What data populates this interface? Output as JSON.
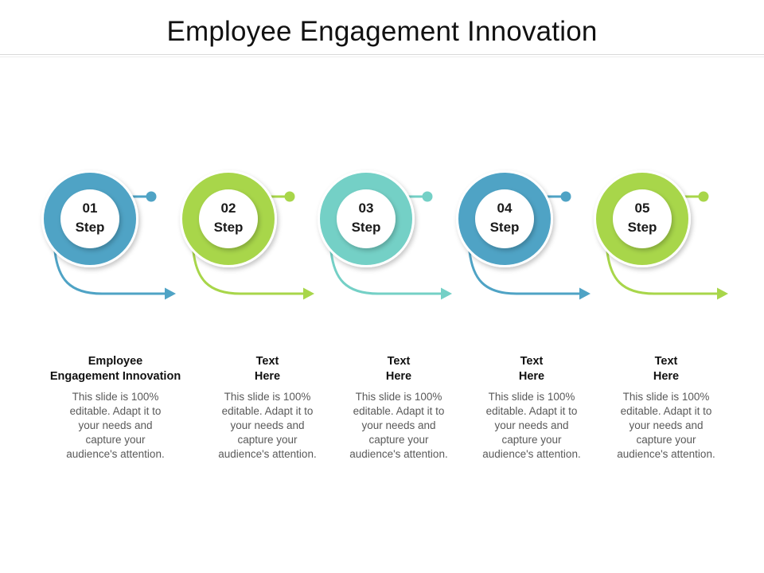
{
  "title": "Employee Engagement Innovation",
  "colors": {
    "blue": "#4fa3c5",
    "green": "#a8d64a",
    "teal": "#74d0c6"
  },
  "steps": [
    {
      "number": "01",
      "word": "Step",
      "color": "#4fa3c5",
      "heading": [
        "Employee",
        "Engagement Innovation"
      ],
      "desc": [
        "This slide is 100%",
        "editable. Adapt it to",
        "your needs and",
        "capture your",
        "audience's attention."
      ]
    },
    {
      "number": "02",
      "word": "Step",
      "color": "#a8d64a",
      "heading": [
        "Text",
        "Here"
      ],
      "desc": [
        "This slide is 100%",
        "editable. Adapt it to",
        "your needs and",
        "capture your",
        "audience's attention."
      ]
    },
    {
      "number": "03",
      "word": "Step",
      "color": "#74d0c6",
      "heading": [
        "Text",
        "Here"
      ],
      "desc": [
        "This slide is 100%",
        "editable. Adapt it to",
        "your needs and",
        "capture your",
        "audience's attention."
      ]
    },
    {
      "number": "04",
      "word": "Step",
      "color": "#4fa3c5",
      "heading": [
        "Text",
        "Here"
      ],
      "desc": [
        "This slide is 100%",
        "editable. Adapt it to",
        "your needs and",
        "capture your",
        "audience's attention."
      ]
    },
    {
      "number": "05",
      "word": "Step",
      "color": "#a8d64a",
      "heading": [
        "Text",
        "Here"
      ],
      "desc": [
        "This slide is 100%",
        "editable. Adapt it to",
        "your needs and",
        "capture your",
        "audience's attention."
      ]
    }
  ]
}
